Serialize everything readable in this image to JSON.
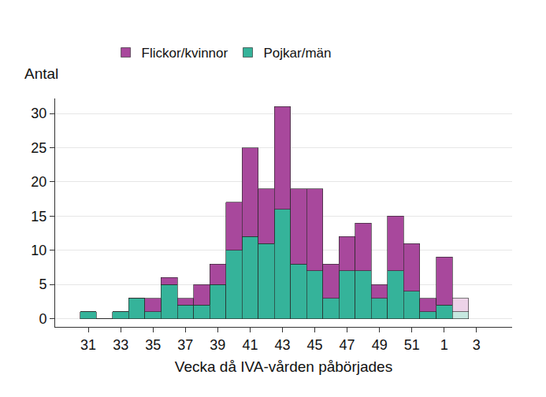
{
  "chart_data": {
    "type": "bar",
    "stacked": true,
    "y_label": "Antal",
    "x_label": "Vecka då IVA-vården påbörjades",
    "categories": [
      "31",
      null,
      "33",
      null,
      "35",
      null,
      "37",
      null,
      "39",
      null,
      "41",
      null,
      "43",
      null,
      "45",
      null,
      "47",
      null,
      "49",
      null,
      "51",
      null,
      "1",
      null,
      "3"
    ],
    "series": [
      {
        "name": "Pojkar/män",
        "color": "#35b39a",
        "colors": [
          "#35b39a",
          "#35b39a",
          "#35b39a",
          "#35b39a",
          "#35b39a",
          "#35b39a",
          "#35b39a",
          "#35b39a",
          "#35b39a",
          "#35b39a",
          "#35b39a",
          "#35b39a",
          "#35b39a",
          "#35b39a",
          "#35b39a",
          "#35b39a",
          "#35b39a",
          "#35b39a",
          "#35b39a",
          "#35b39a",
          "#35b39a",
          "#35b39a",
          "#35b39a",
          "#c6e8e0",
          "#35b39a"
        ],
        "values": [
          1,
          0,
          1,
          3,
          1,
          5,
          2,
          2,
          5,
          10,
          12,
          11,
          16,
          8,
          7,
          3,
          7,
          7,
          3,
          7,
          4,
          1,
          2,
          1,
          null
        ]
      },
      {
        "name": "Flickor/kvinnor",
        "color": "#a8489c",
        "colors": [
          "#a8489c",
          "#a8489c",
          "#a8489c",
          "#a8489c",
          "#a8489c",
          "#a8489c",
          "#a8489c",
          "#a8489c",
          "#a8489c",
          "#a8489c",
          "#a8489c",
          "#a8489c",
          "#a8489c",
          "#a8489c",
          "#a8489c",
          "#a8489c",
          "#a8489c",
          "#a8489c",
          "#a8489c",
          "#a8489c",
          "#a8489c",
          "#a8489c",
          "#a8489c",
          "#edd3e8",
          "#a8489c"
        ],
        "values": [
          0,
          0,
          0,
          0,
          2,
          1,
          1,
          3,
          3,
          7,
          13,
          8,
          15,
          11,
          12,
          5,
          5,
          7,
          2,
          8,
          7,
          2,
          7,
          2,
          null
        ]
      }
    ],
    "ylim": [
      -1.2,
      32.2
    ],
    "yticks": [
      0,
      5,
      10,
      15,
      20,
      25,
      30
    ],
    "grid": true,
    "legend": "top"
  }
}
